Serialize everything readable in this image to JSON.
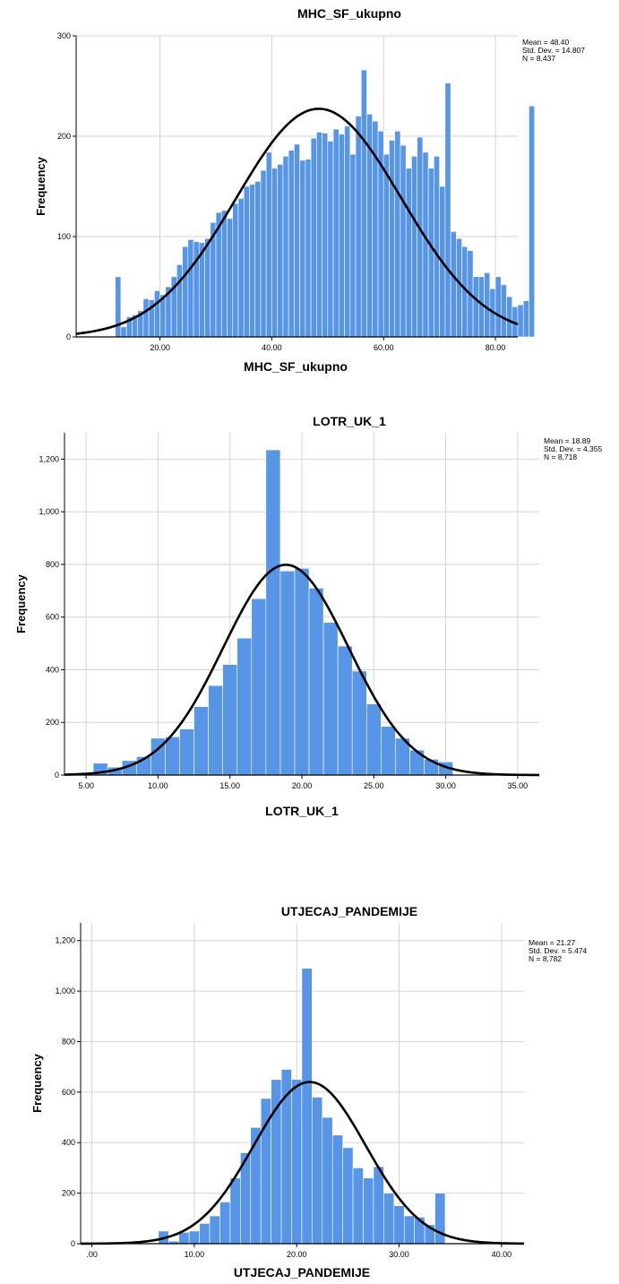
{
  "chart_data": [
    {
      "type": "bar",
      "title": "MHC_SF_ukupno",
      "xlabel": "MHC_SF_ukupno",
      "ylabel": "Frequency",
      "stats": [
        "Mean = 48.40",
        "Std. Dev. = 14.807",
        "N = 8,437"
      ],
      "mean": 48.4,
      "sd": 14.807,
      "n": 8437,
      "binwidth": 1,
      "xlim": [
        5,
        84
      ],
      "ylim": [
        0,
        300
      ],
      "xticks": [
        20,
        40,
        60,
        80
      ],
      "xtick_labels": [
        "20.00",
        "40.00",
        "60.00",
        "80.00"
      ],
      "yticks": [
        0,
        100,
        200,
        300
      ],
      "ytick_labels": [
        "0",
        "100",
        "200",
        "300"
      ],
      "bin_start": 12,
      "values": [
        60,
        10,
        20,
        22,
        26,
        38,
        37,
        46,
        42,
        50,
        60,
        72,
        90,
        97,
        95,
        94,
        98,
        114,
        124,
        126,
        118,
        133,
        138,
        150,
        152,
        155,
        166,
        184,
        168,
        172,
        180,
        186,
        192,
        176,
        177,
        198,
        204,
        203,
        195,
        207,
        202,
        210,
        182,
        220,
        266,
        222,
        215,
        205,
        182,
        196,
        205,
        191,
        168,
        180,
        199,
        184,
        168,
        180,
        150,
        253,
        105,
        98,
        90,
        86,
        60,
        60,
        64,
        48,
        60,
        52,
        40,
        30,
        32,
        36,
        230
      ],
      "curve": true,
      "grid": true
    },
    {
      "type": "bar",
      "title": "LOTR_UK_1",
      "xlabel": "LOTR_UK_1",
      "ylabel": "Frequency",
      "stats": [
        "Mean = 18.89",
        "Std. Dev. = 4.355",
        "N = 8,718"
      ],
      "mean": 18.89,
      "sd": 4.355,
      "n": 8718,
      "binwidth": 1,
      "xlim": [
        3.5,
        36.5
      ],
      "ylim": [
        0,
        1300
      ],
      "xticks": [
        5,
        10,
        15,
        20,
        25,
        30,
        35
      ],
      "xtick_labels": [
        "5.00",
        "10.00",
        "15.00",
        "20.00",
        "25.00",
        "30.00",
        "35.00"
      ],
      "yticks": [
        0,
        200,
        400,
        600,
        800,
        1000,
        1200
      ],
      "ytick_labels": [
        "0",
        "200",
        "400",
        "600",
        "800",
        "1,000",
        "1,200"
      ],
      "bin_start": 5.5,
      "values": [
        45,
        30,
        55,
        70,
        140,
        145,
        175,
        260,
        340,
        420,
        520,
        670,
        1235,
        775,
        785,
        710,
        580,
        490,
        395,
        270,
        185,
        140,
        95,
        60,
        50
      ],
      "curve": true,
      "grid": true
    },
    {
      "type": "bar",
      "title": "UTJECAJ_PANDEMIJE",
      "xlabel": "UTJECAJ_PANDEMIJE",
      "ylabel": "Frequency",
      "stats": [
        "Mean = 21.27",
        "Std. Dev. = 5.474",
        "N = 8,782"
      ],
      "mean": 21.27,
      "sd": 5.474,
      "n": 8782,
      "binwidth": 1,
      "xlim": [
        -1.1,
        42.2
      ],
      "ylim": [
        0,
        1270
      ],
      "xticks": [
        0,
        10,
        20,
        30,
        40
      ],
      "xtick_labels": [
        ".00",
        "10.00",
        "20.00",
        "30.00",
        "40.00"
      ],
      "yticks": [
        0,
        200,
        400,
        600,
        800,
        1000,
        1200
      ],
      "ytick_labels": [
        "0",
        "200",
        "400",
        "600",
        "800",
        "1,000",
        "1,200"
      ],
      "bin_start": 6.5,
      "values": [
        50,
        10,
        45,
        50,
        80,
        110,
        165,
        260,
        360,
        460,
        575,
        650,
        690,
        650,
        1090,
        580,
        500,
        430,
        380,
        300,
        260,
        305,
        200,
        150,
        110,
        105,
        75,
        200
      ],
      "curve": true,
      "grid": true
    }
  ],
  "colors": {
    "bar": "#5795e6",
    "bar_edge": "#ffffff",
    "curve": "#000000",
    "grid": "#d4d4d4",
    "axis": "#000000"
  }
}
